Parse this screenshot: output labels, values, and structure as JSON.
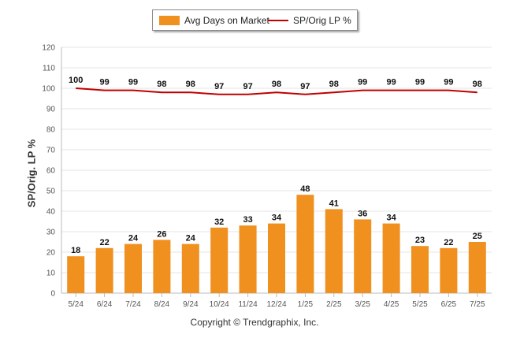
{
  "chart_data": {
    "type": "bar",
    "categories": [
      "5/24",
      "6/24",
      "7/24",
      "8/24",
      "9/24",
      "10/24",
      "11/24",
      "12/24",
      "1/25",
      "2/25",
      "3/25",
      "4/25",
      "5/25",
      "6/25",
      "7/25"
    ],
    "series": [
      {
        "name": "Avg Days on Market",
        "type": "bar",
        "color": "#f0901e",
        "values": [
          18,
          22,
          24,
          26,
          24,
          32,
          33,
          34,
          48,
          41,
          36,
          34,
          23,
          22,
          25
        ]
      },
      {
        "name": "SP/Orig LP %",
        "type": "line",
        "color": "#c00000",
        "values": [
          100,
          99,
          99,
          98,
          98,
          97,
          97,
          98,
          97,
          98,
          99,
          99,
          99,
          99,
          98
        ]
      }
    ],
    "ylabel": "SP/Orig. LP %",
    "ylim": [
      0,
      120
    ],
    "yticks": [
      0,
      10,
      20,
      30,
      40,
      50,
      60,
      70,
      80,
      90,
      100,
      110,
      120
    ],
    "grid": true,
    "legend_position": "top-center"
  },
  "footer": {
    "copyright": "Copyright © Trendgraphix, Inc."
  }
}
